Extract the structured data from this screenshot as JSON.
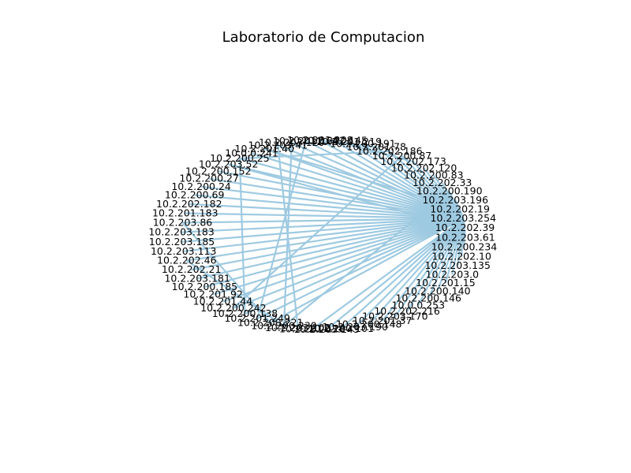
{
  "title": "Laboratorio de Computacion",
  "colors": {
    "edge": "#9ecae1",
    "text": "#000000",
    "background": "#ffffff"
  },
  "graph": {
    "layout": "circular",
    "hub": "10.2.203.254",
    "nodes": [
      "10.2.203.254",
      "10.2.202.39",
      "10.2.203.61",
      "10.2.200.234",
      "10.2.202.10",
      "10.2.203.135",
      "10.2.203.0",
      "10.2.201.15",
      "10.2.200.140",
      "10.2.200.146",
      "10.0.0.253",
      "10.2.202.216",
      "10.2.203.170",
      "10.2.201.37",
      "10.2.200.148",
      "10.2.203.190",
      "10.2.200.101",
      "10.2.203.143",
      "10.2.201.128",
      "10.2.203.102",
      "10.2.200.230",
      "10.2.200.221",
      "10.2.201.249",
      "10.2.200.138",
      "10.2.200.242",
      "10.2.201.44",
      "10.2.201.92",
      "10.2.200.185",
      "10.2.203.181",
      "10.2.202.21",
      "10.2.202.46",
      "10.2.203.113",
      "10.2.203.185",
      "10.2.203.183",
      "10.2.203.86",
      "10.2.201.183",
      "10.2.202.182",
      "10.2.200.69",
      "10.2.200.24",
      "10.2.200.27",
      "10.2.200.152",
      "10.2.203.52",
      "10.2.200.25",
      "10.0.0.241",
      "10.2.201.40",
      "10.2.203.41",
      "10.2.203.120",
      "10.2.201.164",
      "10.2.201.208",
      "10.2.202.145",
      "10.2.201.219",
      "10.2.200.191",
      "10.2.201.78",
      "10.2.202.186",
      "10.2.200.87",
      "10.2.202.173",
      "10.2.202.120",
      "10.2.200.83",
      "10.2.202.33",
      "10.2.200.190",
      "10.2.203.196",
      "10.2.202.19"
    ],
    "edges": [
      [
        "10.2.203.254",
        "10.2.202.39"
      ],
      [
        "10.2.203.254",
        "10.2.203.61"
      ],
      [
        "10.2.203.254",
        "10.2.200.234"
      ],
      [
        "10.2.203.254",
        "10.2.202.10"
      ],
      [
        "10.2.203.254",
        "10.2.203.135"
      ],
      [
        "10.2.203.254",
        "10.2.203.0"
      ],
      [
        "10.2.203.254",
        "10.2.201.15"
      ],
      [
        "10.2.203.254",
        "10.2.200.140"
      ],
      [
        "10.2.203.254",
        "10.2.200.146"
      ],
      [
        "10.2.203.254",
        "10.0.0.253"
      ],
      [
        "10.2.203.254",
        "10.2.202.216"
      ],
      [
        "10.2.203.254",
        "10.2.203.170"
      ],
      [
        "10.2.203.254",
        "10.2.201.37"
      ],
      [
        "10.2.203.254",
        "10.2.200.148"
      ],
      [
        "10.2.203.254",
        "10.2.203.190"
      ],
      [
        "10.2.203.254",
        "10.2.200.101"
      ],
      [
        "10.2.203.254",
        "10.2.203.143"
      ],
      [
        "10.2.203.254",
        "10.2.201.128"
      ],
      [
        "10.2.203.254",
        "10.2.200.221"
      ],
      [
        "10.2.203.254",
        "10.2.201.249"
      ],
      [
        "10.2.203.254",
        "10.2.200.138"
      ],
      [
        "10.2.203.254",
        "10.2.200.242"
      ],
      [
        "10.2.203.254",
        "10.2.201.44"
      ],
      [
        "10.2.203.254",
        "10.2.201.92"
      ],
      [
        "10.2.203.254",
        "10.2.200.185"
      ],
      [
        "10.2.203.254",
        "10.2.203.181"
      ],
      [
        "10.2.203.254",
        "10.2.202.21"
      ],
      [
        "10.2.203.254",
        "10.2.202.46"
      ],
      [
        "10.2.203.254",
        "10.2.203.113"
      ],
      [
        "10.2.203.254",
        "10.2.203.185"
      ],
      [
        "10.2.203.254",
        "10.2.203.183"
      ],
      [
        "10.2.203.254",
        "10.2.203.86"
      ],
      [
        "10.2.203.254",
        "10.2.201.183"
      ],
      [
        "10.2.203.254",
        "10.2.202.182"
      ],
      [
        "10.2.203.254",
        "10.2.200.69"
      ],
      [
        "10.2.203.254",
        "10.2.200.24"
      ],
      [
        "10.2.203.254",
        "10.2.200.27"
      ],
      [
        "10.2.203.254",
        "10.2.200.152"
      ],
      [
        "10.2.203.254",
        "10.2.203.52"
      ],
      [
        "10.2.203.254",
        "10.2.200.25"
      ],
      [
        "10.2.203.254",
        "10.0.0.241"
      ],
      [
        "10.2.203.254",
        "10.2.201.40"
      ],
      [
        "10.2.203.254",
        "10.2.203.41"
      ],
      [
        "10.2.203.254",
        "10.2.203.120"
      ],
      [
        "10.2.203.254",
        "10.2.201.164"
      ],
      [
        "10.2.203.254",
        "10.2.201.208"
      ],
      [
        "10.2.203.254",
        "10.2.202.145"
      ],
      [
        "10.2.203.254",
        "10.2.201.219"
      ],
      [
        "10.2.203.254",
        "10.2.200.191"
      ],
      [
        "10.2.203.254",
        "10.2.201.78"
      ],
      [
        "10.2.203.254",
        "10.2.202.186"
      ],
      [
        "10.2.203.254",
        "10.2.200.87"
      ],
      [
        "10.2.203.254",
        "10.2.202.173"
      ],
      [
        "10.2.203.254",
        "10.2.202.120"
      ],
      [
        "10.2.203.254",
        "10.2.200.83"
      ],
      [
        "10.2.203.254",
        "10.2.202.33"
      ],
      [
        "10.2.203.254",
        "10.2.200.190"
      ],
      [
        "10.2.203.254",
        "10.2.203.196"
      ],
      [
        "10.2.203.254",
        "10.2.202.19"
      ],
      [
        "10.2.203.41",
        "10.2.203.102"
      ],
      [
        "10.2.203.120",
        "10.2.200.230"
      ],
      [
        "10.2.201.164",
        "10.2.201.249"
      ],
      [
        "10.2.200.25",
        "10.2.200.138"
      ],
      [
        "10.2.200.25",
        "10.2.202.186"
      ],
      [
        "10.2.201.208",
        "10.2.201.78"
      ],
      [
        "10.2.203.52",
        "10.2.202.39"
      ],
      [
        "10.2.203.86",
        "10.2.200.221"
      ],
      [
        "10.2.202.46",
        "10.2.200.230"
      ],
      [
        "10.2.201.40",
        "10.2.202.19"
      ],
      [
        "10.2.200.190",
        "10.2.200.230"
      ],
      [
        "10.2.202.145",
        "10.2.202.173"
      ],
      [
        "10.2.200.87",
        "10.2.200.242"
      ]
    ]
  }
}
